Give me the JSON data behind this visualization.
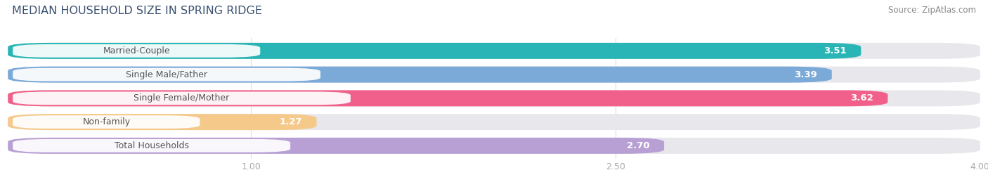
{
  "title": "MEDIAN HOUSEHOLD SIZE IN SPRING RIDGE",
  "source": "Source: ZipAtlas.com",
  "categories": [
    "Married-Couple",
    "Single Male/Father",
    "Single Female/Mother",
    "Non-family",
    "Total Households"
  ],
  "values": [
    3.51,
    3.39,
    3.62,
    1.27,
    2.7
  ],
  "bar_colors": [
    "#29b5b5",
    "#7baad8",
    "#f0608a",
    "#f5c98a",
    "#b8a0d4"
  ],
  "bar_bg_color": "#e8e8ec",
  "xlim_start": 0.0,
  "xlim_end": 4.0,
  "xticks": [
    1.0,
    2.5,
    4.0
  ],
  "title_fontsize": 11.5,
  "source_fontsize": 8.5,
  "bar_label_fontsize": 9.5,
  "category_fontsize": 9.0,
  "title_color": "#3a5070",
  "source_color": "#888888",
  "category_text_color": "#555555",
  "value_text_color": "#ffffff",
  "tick_color": "#aaaaaa",
  "background_color": "#ffffff",
  "grid_color": "#dddddd"
}
